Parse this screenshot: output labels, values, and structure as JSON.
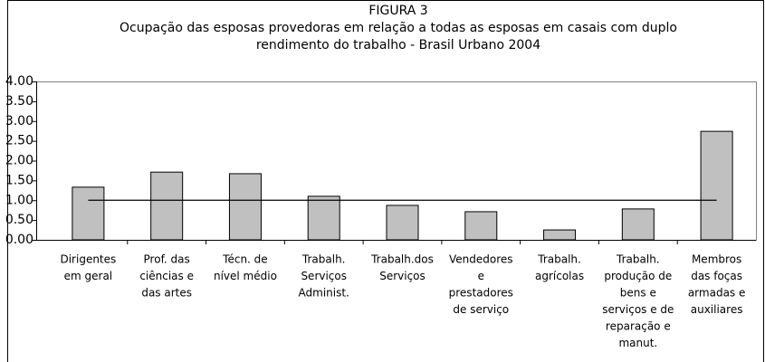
{
  "chart_data": {
    "type": "bar",
    "title": "FIGURA 3",
    "subtitle": [
      "Ocupação das esposas provedoras em relação a todas as esposas em casais com duplo",
      "rendimento do trabalho - Brasil Urbano 2004"
    ],
    "categories": [
      [
        "Dirigentes",
        "em geral"
      ],
      [
        "Prof. das",
        "ciências e",
        "das artes"
      ],
      [
        "Técn. de",
        "nível médio"
      ],
      [
        "Trabalh.",
        "Serviços",
        "Administ."
      ],
      [
        "Trabalh.dos",
        "Serviços"
      ],
      [
        "Vendedores",
        "e",
        "prestadores",
        "de serviço"
      ],
      [
        "Trabalh.",
        "agrícolas"
      ],
      [
        "Trabalh.",
        "produção de",
        "bens e",
        "serviços e de",
        "reparação e",
        "manut."
      ],
      [
        "Membros",
        "das foças",
        "armadas e",
        "auxiliares"
      ]
    ],
    "values": [
      1.33,
      1.71,
      1.67,
      1.1,
      0.87,
      0.71,
      0.25,
      0.78,
      2.74
    ],
    "color": "#c0c0c0",
    "reference": 1,
    "ylim": [
      0,
      4
    ],
    "yticks": [
      {
        "value": 0,
        "label": "0.00"
      },
      {
        "value": 0.5,
        "label": "0.50"
      },
      {
        "value": 1,
        "label": "1.00"
      },
      {
        "value": 1.5,
        "label": "1.50"
      },
      {
        "value": 2,
        "label": "2.00"
      },
      {
        "value": 2.5,
        "label": "2.50"
      },
      {
        "value": 3,
        "label": "3.00"
      },
      {
        "value": 3.5,
        "label": "3.50"
      },
      {
        "value": 4,
        "label": "4.00"
      }
    ],
    "grid": false
  }
}
